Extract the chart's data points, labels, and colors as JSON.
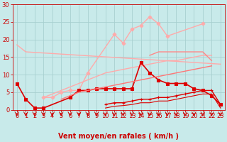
{
  "background_color": "#c8eaea",
  "grid_color": "#a8d0d0",
  "xlabel": "Vent moyen/en rafales ( km/h )",
  "xlim": [
    -0.5,
    23.5
  ],
  "ylim": [
    0,
    30
  ],
  "xticks": [
    0,
    1,
    2,
    3,
    4,
    5,
    6,
    7,
    8,
    9,
    10,
    11,
    12,
    13,
    14,
    15,
    16,
    17,
    18,
    19,
    20,
    21,
    22,
    23
  ],
  "yticks": [
    0,
    5,
    10,
    15,
    20,
    25,
    30
  ],
  "series": [
    {
      "x": [
        0,
        1,
        23
      ],
      "y": [
        18.5,
        16.5,
        13.0
      ],
      "color": "#ffaaaa",
      "lw": 1.0,
      "marker": null
    },
    {
      "x": [
        0,
        1,
        2,
        3,
        4,
        5,
        6,
        7,
        8,
        9,
        10,
        11,
        12,
        13,
        14,
        15,
        16,
        17,
        18,
        19,
        20,
        21,
        22,
        23
      ],
      "y": [
        null,
        null,
        null,
        3.5,
        4.5,
        5.5,
        6.5,
        7.5,
        8.5,
        9.5,
        10.5,
        11.0,
        11.5,
        12.0,
        12.5,
        13.0,
        13.5,
        14.0,
        14.0,
        14.5,
        15.0,
        15.5,
        15.5,
        null
      ],
      "color": "#ffaaaa",
      "lw": 1.0,
      "marker": null
    },
    {
      "x": [
        3,
        4,
        5,
        6,
        7,
        8,
        11,
        12,
        13,
        14,
        15,
        16,
        17,
        21
      ],
      "y": [
        3.5,
        3.5,
        5.0,
        5.5,
        5.5,
        10.5,
        21.5,
        19.0,
        23.0,
        24.0,
        26.5,
        24.5,
        21.0,
        24.5
      ],
      "color": "#ffaaaa",
      "lw": 1.0,
      "marker": "D",
      "ms": 2.5
    },
    {
      "x": [
        0,
        1,
        2,
        3,
        4,
        5,
        6,
        7,
        8,
        9,
        10,
        11,
        12,
        13,
        14,
        15,
        16,
        17,
        18,
        19,
        20,
        21,
        22,
        23
      ],
      "y": [
        null,
        null,
        null,
        null,
        null,
        null,
        null,
        null,
        null,
        null,
        null,
        null,
        null,
        null,
        null,
        15.5,
        16.5,
        16.5,
        16.5,
        16.5,
        16.5,
        16.5,
        14.0,
        null
      ],
      "color": "#ff8888",
      "lw": 1.0,
      "marker": null
    },
    {
      "x": [
        0,
        1,
        2,
        3,
        6,
        7,
        8,
        9,
        10,
        11,
        12,
        13,
        14,
        15,
        16,
        17,
        18,
        19,
        20,
        21,
        22,
        23
      ],
      "y": [
        7.5,
        3.0,
        0.5,
        0.5,
        3.5,
        5.5,
        5.5,
        6.0,
        6.0,
        6.0,
        6.0,
        6.0,
        13.5,
        10.5,
        8.5,
        7.5,
        7.5,
        7.5,
        6.0,
        5.5,
        4.0,
        1.5
      ],
      "color": "#dd0000",
      "lw": 1.2,
      "marker": "s",
      "ms": 2.5
    },
    {
      "x": [
        10,
        11,
        12,
        13,
        14,
        15,
        16,
        17,
        18,
        19,
        20,
        21,
        22,
        23
      ],
      "y": [
        1.5,
        2.0,
        2.0,
        2.5,
        3.0,
        3.0,
        3.5,
        3.5,
        4.0,
        4.5,
        5.0,
        5.5,
        5.5,
        1.5
      ],
      "color": "#dd0000",
      "lw": 1.0,
      "marker": "+",
      "ms": 3.5
    },
    {
      "x": [
        0,
        1,
        2,
        3,
        4,
        5,
        6,
        7,
        8,
        9,
        10,
        11,
        12,
        13,
        14,
        15,
        16,
        17,
        18,
        19,
        20,
        21,
        22,
        23
      ],
      "y": [
        null,
        null,
        null,
        null,
        null,
        null,
        null,
        null,
        null,
        null,
        0.5,
        1.0,
        1.2,
        1.5,
        2.0,
        2.0,
        2.5,
        2.5,
        3.0,
        3.5,
        4.0,
        4.5,
        4.5,
        0.5
      ],
      "color": "#dd0000",
      "lw": 0.8,
      "marker": null
    },
    {
      "x": [
        0,
        1,
        2,
        3,
        4,
        5,
        6,
        7,
        8,
        9,
        10,
        11,
        12,
        13,
        14,
        15,
        16,
        17,
        18,
        19,
        20,
        21,
        22,
        23
      ],
      "y": [
        null,
        null,
        null,
        null,
        null,
        3.0,
        4.0,
        5.0,
        5.5,
        6.0,
        6.5,
        7.0,
        7.5,
        8.0,
        8.5,
        9.0,
        9.5,
        10.0,
        10.5,
        11.0,
        11.5,
        12.0,
        12.5,
        null
      ],
      "color": "#ff7777",
      "lw": 1.0,
      "marker": null
    }
  ],
  "arrow_color": "#cc0000",
  "xlabel_color": "#cc0000",
  "xlabel_fontsize": 7,
  "tick_color": "#cc0000",
  "tick_fontsize": 6
}
